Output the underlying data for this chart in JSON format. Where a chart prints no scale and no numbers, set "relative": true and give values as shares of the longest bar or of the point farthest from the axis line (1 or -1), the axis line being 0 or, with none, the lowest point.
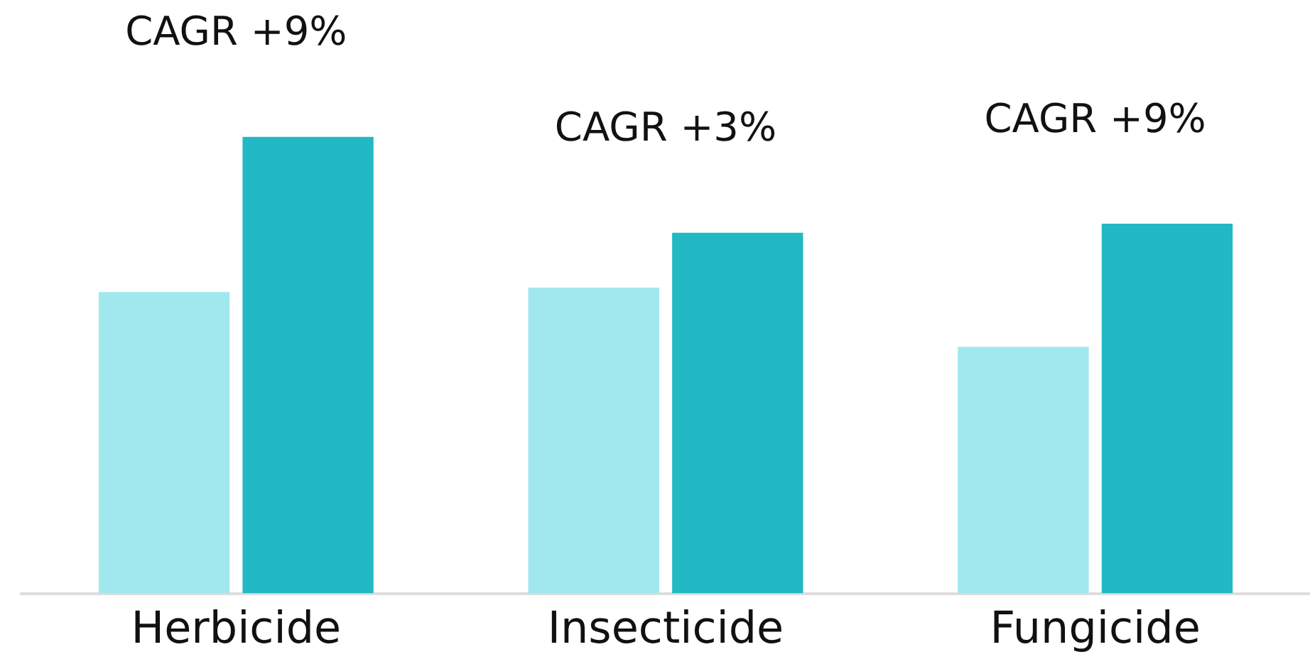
{
  "chart_data": {
    "type": "bar",
    "relative": true,
    "categories": [
      "Herbicide",
      "Insecticide",
      "Fungicide"
    ],
    "series": [
      {
        "color": "#a0e8ee",
        "values": [
          0.66,
          0.67,
          0.54
        ]
      },
      {
        "color": "#22b8c4",
        "values": [
          1,
          0.79,
          0.81
        ]
      }
    ],
    "annotations": [
      "CAGR +9%",
      "CAGR +3%",
      "CAGR +9%"
    ],
    "grid": false,
    "legend": false
  }
}
